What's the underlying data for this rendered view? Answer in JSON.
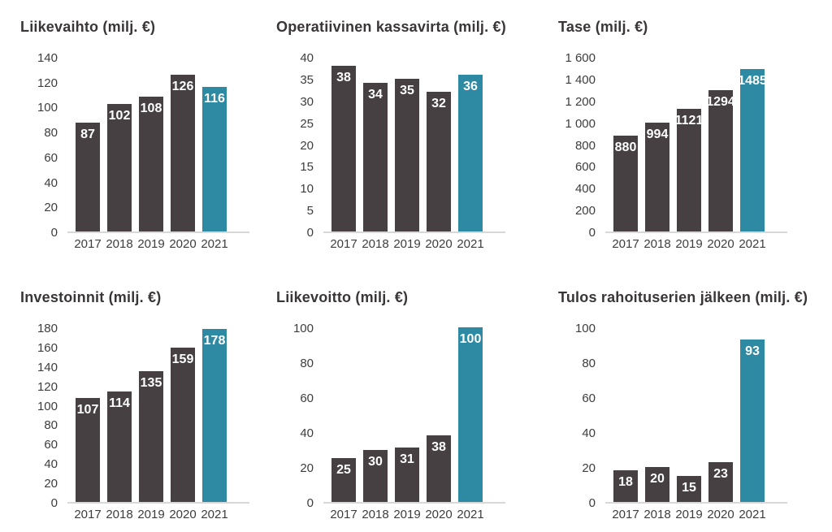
{
  "page": {
    "background": "#ffffff"
  },
  "colors": {
    "bar_default": "#464043",
    "bar_highlight": "#2e8aa3",
    "bar_label": "#ffffff",
    "axis_text": "#3d3d3d",
    "title_text": "#3a3537",
    "baseline": "#d8d8d8"
  },
  "chart_data": [
    {
      "type": "bar",
      "title": "Liikevaihto (milj. €)",
      "categories": [
        "2017",
        "2018",
        "2019",
        "2020",
        "2021"
      ],
      "values": [
        87,
        102,
        108,
        126,
        116
      ],
      "bar_labels": [
        "87",
        "102",
        "108",
        "126",
        "116"
      ],
      "ylim": [
        0,
        140
      ],
      "ystep": 20,
      "ytick_labels": [
        "140",
        "120",
        "100",
        "80",
        "60",
        "40",
        "20",
        "0"
      ],
      "highlight_index": 4,
      "grid": false,
      "legend": null
    },
    {
      "type": "bar",
      "title": "Operatiivinen kassavirta (milj. €)",
      "categories": [
        "2017",
        "2018",
        "2019",
        "2020",
        "2021"
      ],
      "values": [
        38,
        34,
        35,
        32,
        36
      ],
      "bar_labels": [
        "38",
        "34",
        "35",
        "32",
        "36"
      ],
      "ylim": [
        0,
        40
      ],
      "ystep": 5,
      "ytick_labels": [
        "40",
        "35",
        "30",
        "25",
        "20",
        "15",
        "10",
        "5",
        "0"
      ],
      "highlight_index": 4,
      "grid": false,
      "legend": null
    },
    {
      "type": "bar",
      "title": "Tase (milj. €)",
      "categories": [
        "2017",
        "2018",
        "2019",
        "2020",
        "2021"
      ],
      "values": [
        880,
        994,
        1121,
        1294,
        1485
      ],
      "bar_labels": [
        "880",
        "994",
        "1121",
        "1294",
        "1485"
      ],
      "ylim": [
        0,
        1600
      ],
      "ystep": 200,
      "ytick_labels": [
        "1 600",
        "1 400",
        "1 200",
        "1 000",
        "800",
        "600",
        "400",
        "200",
        "0"
      ],
      "highlight_index": 4,
      "grid": false,
      "legend": null
    },
    {
      "type": "bar",
      "title": "Investoinnit (milj. €)",
      "categories": [
        "2017",
        "2018",
        "2019",
        "2020",
        "2021"
      ],
      "values": [
        107,
        114,
        135,
        159,
        178
      ],
      "bar_labels": [
        "107",
        "114",
        "135",
        "159",
        "178"
      ],
      "ylim": [
        0,
        180
      ],
      "ystep": 20,
      "ytick_labels": [
        "180",
        "160",
        "140",
        "120",
        "100",
        "80",
        "60",
        "40",
        "20",
        "0"
      ],
      "highlight_index": 4,
      "grid": false,
      "legend": null
    },
    {
      "type": "bar",
      "title": "Liikevoitto (milj. €)",
      "categories": [
        "2017",
        "2018",
        "2019",
        "2020",
        "2021"
      ],
      "values": [
        25,
        30,
        31,
        38,
        100
      ],
      "bar_labels": [
        "25",
        "30",
        "31",
        "38",
        "100"
      ],
      "ylim": [
        0,
        100
      ],
      "ystep": 20,
      "ytick_labels": [
        "100",
        "80",
        "60",
        "40",
        "20",
        "0"
      ],
      "highlight_index": 4,
      "grid": false,
      "legend": null
    },
    {
      "type": "bar",
      "title": "Tulos rahoituserien jälkeen (milj. €)",
      "categories": [
        "2017",
        "2018",
        "2019",
        "2020",
        "2021"
      ],
      "values": [
        18,
        20,
        15,
        23,
        93
      ],
      "bar_labels": [
        "18",
        "20",
        "15",
        "23",
        "93"
      ],
      "ylim": [
        0,
        100
      ],
      "ystep": 20,
      "ytick_labels": [
        "100",
        "80",
        "60",
        "40",
        "20",
        "0"
      ],
      "highlight_index": 4,
      "grid": false,
      "legend": null
    }
  ]
}
